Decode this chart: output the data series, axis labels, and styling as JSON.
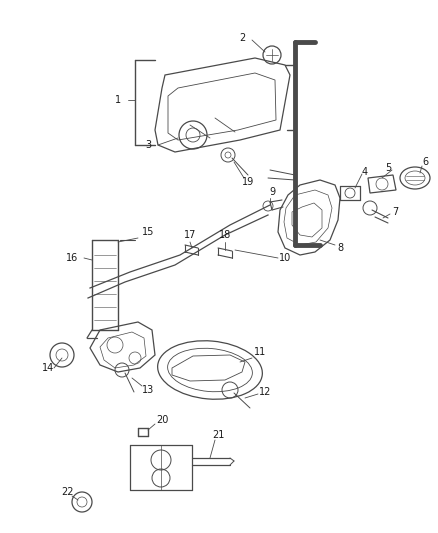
{
  "bg_color": "#ffffff",
  "line_color": "#4a4a4a",
  "text_color": "#1a1a1a",
  "fig_width": 4.38,
  "fig_height": 5.33,
  "dpi": 100
}
